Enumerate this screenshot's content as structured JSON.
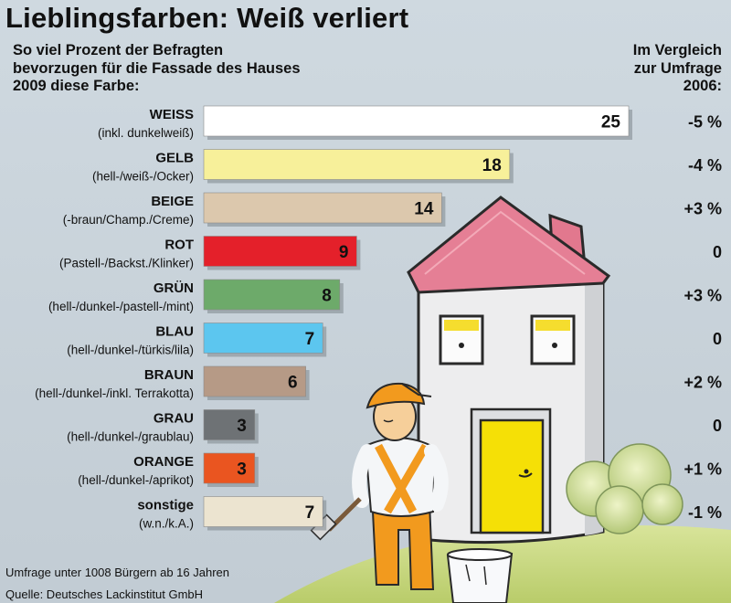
{
  "title": "Lieblingsfarben: Weiß verliert",
  "subtitle_lines": [
    "So viel Prozent der Befragten",
    "bevorzugen für die Fassade des Hauses",
    "2009 diese Farbe:"
  ],
  "comparison_header_lines": [
    "Im Vergleich",
    "zur Umfrage",
    "2006:"
  ],
  "footnotes": {
    "survey": "Umfrage unter 1008 Bürgern ab 16 Jahren",
    "source": "Quelle: Deutsches Lackinstitut GmbH"
  },
  "chart_data": {
    "type": "bar",
    "orientation": "horizontal",
    "title": "Lieblingsfarben: Weiß verliert",
    "unit": "%",
    "categories": [
      "WEISS",
      "GELB",
      "BEIGE",
      "ROT",
      "GRÜN",
      "BLAU",
      "BRAUN",
      "GRAU",
      "ORANGE",
      "sonstige"
    ],
    "category_details": [
      "(inkl. dunkelweiß)",
      "(hell-/weiß-/Ocker)",
      "(-braun/Champ./Creme)",
      "(Pastell-/Backst./Klinker)",
      "(hell-/dunkel-/pastell-/mint)",
      "(hell-/dunkel-/türkis/lila)",
      "(hell-/dunkel-/inkl. Terrakotta)",
      "(hell-/dunkel-/graublau)",
      "(hell-/dunkel-/aprikot)",
      "(w.n./k.A.)"
    ],
    "values": [
      25,
      18,
      14,
      9,
      8,
      7,
      6,
      3,
      3,
      7
    ],
    "change_vs_2006": [
      "-5 %",
      "-4 %",
      "+3 %",
      "0",
      "+3 %",
      "0",
      "+2 %",
      "0",
      "+1 %",
      "-1 %"
    ],
    "bar_colors": [
      "#ffffff",
      "#f7f09a",
      "#dcc8ad",
      "#e4202a",
      "#6daa6a",
      "#5cc6ef",
      "#b69a86",
      "#6e7275",
      "#ea5520",
      "#ece4d0"
    ],
    "xlim": [
      0,
      25
    ],
    "grid": false,
    "legend": "none"
  }
}
